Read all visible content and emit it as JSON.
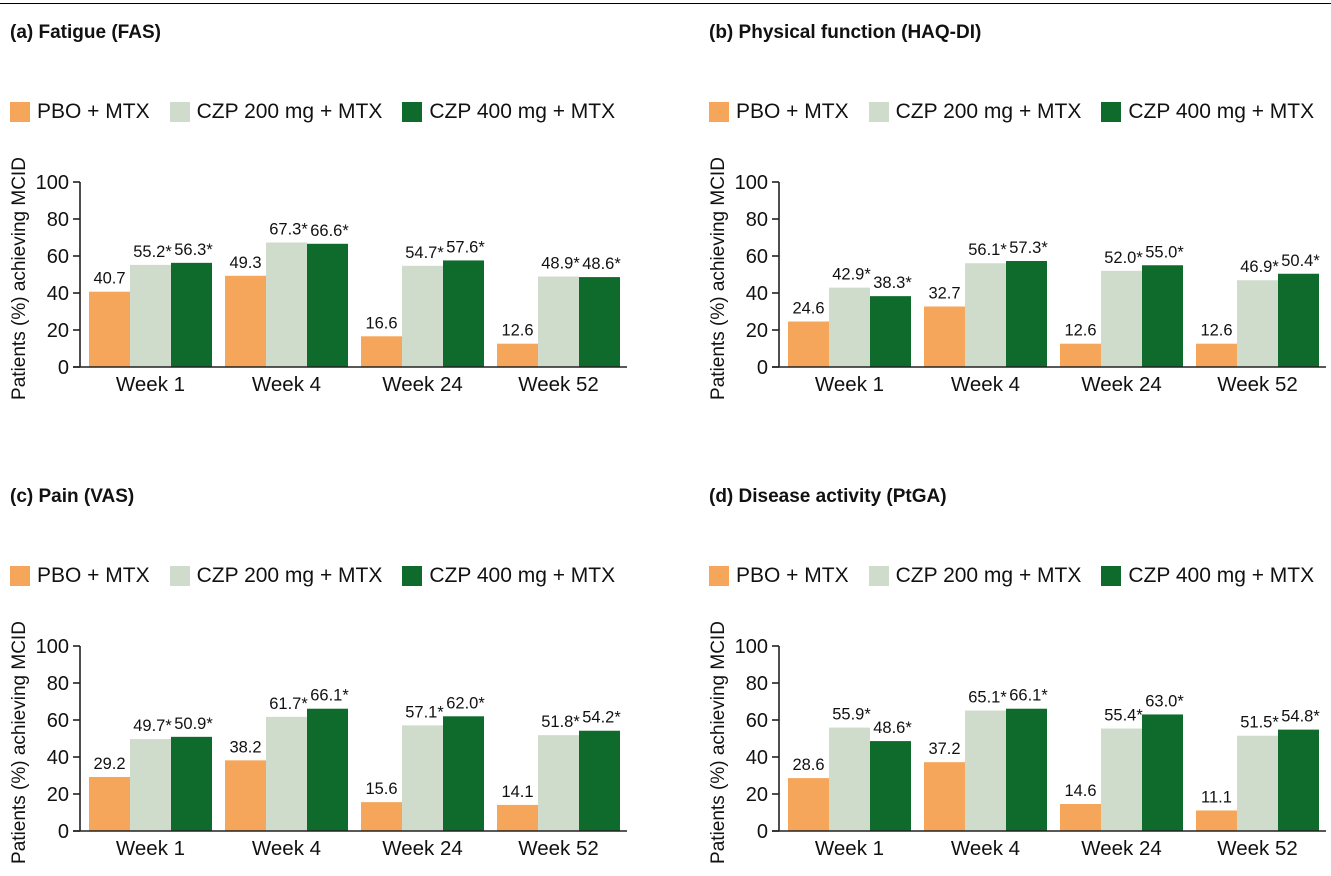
{
  "colors": {
    "pbo": "#f5a65b",
    "czp200": "#cfdccb",
    "czp400": "#0e6b2c",
    "axis": "#222222"
  },
  "legend": [
    "PBO + MTX",
    "CZP 200 mg + MTX",
    "CZP 400 mg + MTX"
  ],
  "panels": [
    {
      "title": "(a) Fatigue (FAS)",
      "chart_data": {
        "type": "bar",
        "categories": [
          "Week 1",
          "Week 4",
          "Week 24",
          "Week 52"
        ],
        "ylabel": "Patients (%) achieving MCID",
        "ylim": [
          0,
          100
        ],
        "yticks": [
          "0",
          "20",
          "40",
          "60",
          "80",
          "100"
        ],
        "series": [
          {
            "name": "PBO + MTX",
            "values": [
              40.7,
              49.3,
              16.6,
              12.6
            ],
            "labels": [
              "40.7",
              "49.3",
              "16.6",
              "12.6"
            ]
          },
          {
            "name": "CZP 200 mg + MTX",
            "values": [
              55.2,
              67.3,
              54.7,
              48.9
            ],
            "labels": [
              "55.2*",
              "67.3*",
              "54.7*",
              "48.9*"
            ]
          },
          {
            "name": "CZP 400 mg + MTX",
            "values": [
              56.3,
              66.6,
              57.6,
              48.6
            ],
            "labels": [
              "56.3*",
              "66.6*",
              "57.6*",
              "48.6*"
            ]
          }
        ]
      }
    },
    {
      "title": "(b) Physical function (HAQ-DI)",
      "chart_data": {
        "type": "bar",
        "categories": [
          "Week 1",
          "Week 4",
          "Week 24",
          "Week 52"
        ],
        "ylabel": "Patients (%) achieving MCID",
        "ylim": [
          0,
          100
        ],
        "yticks": [
          "0",
          "20",
          "40",
          "60",
          "80",
          "100"
        ],
        "series": [
          {
            "name": "PBO + MTX",
            "values": [
              24.6,
              32.7,
              12.6,
              12.6
            ],
            "labels": [
              "24.6",
              "32.7",
              "12.6",
              "12.6"
            ]
          },
          {
            "name": "CZP 200 mg + MTX",
            "values": [
              42.9,
              56.1,
              52.0,
              46.9
            ],
            "labels": [
              "42.9*",
              "56.1*",
              "52.0*",
              "46.9*"
            ]
          },
          {
            "name": "CZP 400 mg + MTX",
            "values": [
              38.3,
              57.3,
              55.0,
              50.4
            ],
            "labels": [
              "38.3*",
              "57.3*",
              "55.0*",
              "50.4*"
            ]
          }
        ]
      }
    },
    {
      "title": "(c) Pain (VAS)",
      "chart_data": {
        "type": "bar",
        "categories": [
          "Week 1",
          "Week 4",
          "Week 24",
          "Week 52"
        ],
        "ylabel": "Patients (%) achieving MCID",
        "ylim": [
          0,
          100
        ],
        "yticks": [
          "0",
          "20",
          "40",
          "60",
          "80",
          "100"
        ],
        "series": [
          {
            "name": "PBO + MTX",
            "values": [
              29.2,
              38.2,
              15.6,
              14.1
            ],
            "labels": [
              "29.2",
              "38.2",
              "15.6",
              "14.1"
            ]
          },
          {
            "name": "CZP 200 mg + MTX",
            "values": [
              49.7,
              61.7,
              57.1,
              51.8
            ],
            "labels": [
              "49.7*",
              "61.7*",
              "57.1*",
              "51.8*"
            ]
          },
          {
            "name": "CZP 400 mg + MTX",
            "values": [
              50.9,
              66.1,
              62.0,
              54.2
            ],
            "labels": [
              "50.9*",
              "66.1*",
              "62.0*",
              "54.2*"
            ]
          }
        ]
      }
    },
    {
      "title": "(d) Disease activity (PtGA)",
      "chart_data": {
        "type": "bar",
        "categories": [
          "Week 1",
          "Week 4",
          "Week 24",
          "Week 52"
        ],
        "ylabel": "Patients (%) achieving MCID",
        "ylim": [
          0,
          100
        ],
        "yticks": [
          "0",
          "20",
          "40",
          "60",
          "80",
          "100"
        ],
        "series": [
          {
            "name": "PBO + MTX",
            "values": [
              28.6,
              37.2,
              14.6,
              11.1
            ],
            "labels": [
              "28.6",
              "37.2",
              "14.6",
              "11.1"
            ]
          },
          {
            "name": "CZP 200 mg + MTX",
            "values": [
              55.9,
              65.1,
              55.4,
              51.5
            ],
            "labels": [
              "55.9*",
              "65.1*",
              "55.4*",
              "51.5*"
            ]
          },
          {
            "name": "CZP 400 mg + MTX",
            "values": [
              48.6,
              66.1,
              63.0,
              54.8
            ],
            "labels": [
              "48.6*",
              "66.1*",
              "63.0*",
              "54.8*"
            ]
          }
        ]
      }
    }
  ]
}
